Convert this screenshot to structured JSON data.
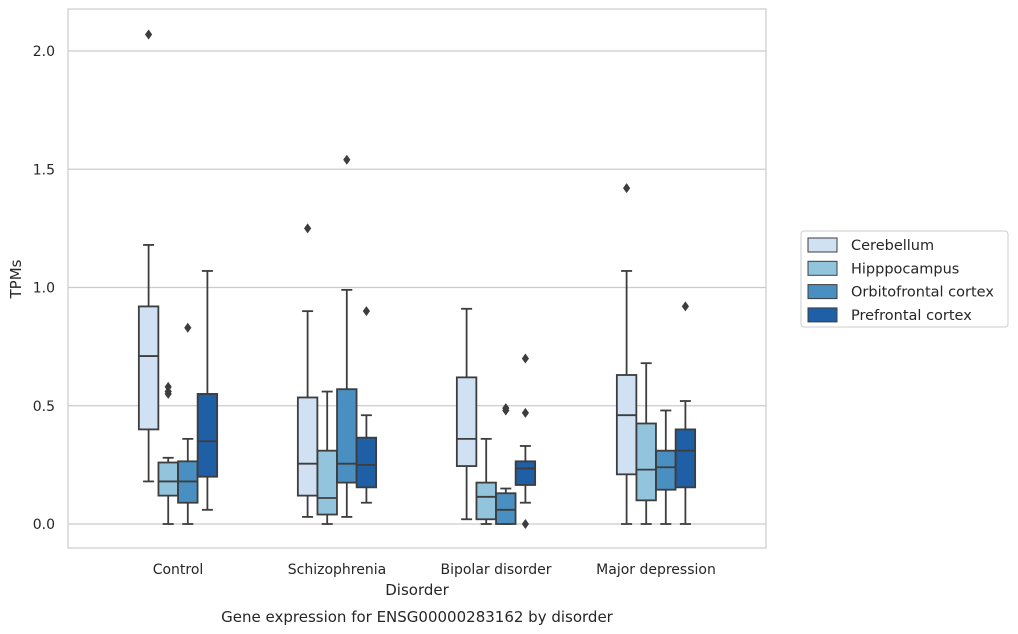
{
  "chart_data": {
    "type": "box",
    "categories": [
      "Control",
      "Schizophrenia",
      "Bipolar disorder",
      "Major depression"
    ],
    "xlabel": "Disorder",
    "ylabel": "TPMs",
    "caption": "Gene expression for ENSG00000283162 by disorder",
    "ylim": [
      -0.1,
      2.18
    ],
    "yticks": [
      0.0,
      0.5,
      1.0,
      1.5,
      2.0
    ],
    "ytick_labels": [
      "0.0",
      "0.5",
      "1.0",
      "1.5",
      "2.0"
    ],
    "grid": "horizontal",
    "legend": {
      "placement": "right",
      "entries": [
        "Cerebellum",
        "Hipppocampus",
        "Orbitofrontal cortex",
        "Prefrontal cortex"
      ]
    },
    "series": [
      {
        "name": "Cerebellum",
        "color": "#cfe1f2",
        "boxes": [
          {
            "whislo": 0.18,
            "q1": 0.4,
            "med": 0.71,
            "q3": 0.92,
            "whishi": 1.18,
            "fliers": [
              2.07
            ]
          },
          {
            "whislo": 0.03,
            "q1": 0.12,
            "med": 0.255,
            "q3": 0.535,
            "whishi": 0.9,
            "fliers": [
              1.25
            ]
          },
          {
            "whislo": 0.02,
            "q1": 0.245,
            "med": 0.36,
            "q3": 0.62,
            "whishi": 0.91,
            "fliers": []
          },
          {
            "whislo": 0.0,
            "q1": 0.21,
            "med": 0.46,
            "q3": 0.63,
            "whishi": 1.07,
            "fliers": [
              1.42
            ]
          }
        ]
      },
      {
        "name": "Hipppocampus",
        "color": "#93c4de",
        "boxes": [
          {
            "whislo": 0.0,
            "q1": 0.12,
            "med": 0.18,
            "q3": 0.26,
            "whishi": 0.28,
            "fliers": [
              0.55,
              0.56,
              0.58
            ]
          },
          {
            "whislo": 0.0,
            "q1": 0.04,
            "med": 0.11,
            "q3": 0.31,
            "whishi": 0.56,
            "fliers": []
          },
          {
            "whislo": 0.0,
            "q1": 0.02,
            "med": 0.115,
            "q3": 0.175,
            "whishi": 0.36,
            "fliers": []
          },
          {
            "whislo": 0.0,
            "q1": 0.1,
            "med": 0.23,
            "q3": 0.425,
            "whishi": 0.68,
            "fliers": []
          }
        ]
      },
      {
        "name": "Orbitofrontal cortex",
        "color": "#4a8fc1",
        "boxes": [
          {
            "whislo": 0.0,
            "q1": 0.09,
            "med": 0.18,
            "q3": 0.265,
            "whishi": 0.36,
            "fliers": [
              0.83
            ]
          },
          {
            "whislo": 0.03,
            "q1": 0.175,
            "med": 0.255,
            "q3": 0.57,
            "whishi": 0.99,
            "fliers": [
              1.54
            ]
          },
          {
            "whislo": 0.0,
            "q1": 0.0,
            "med": 0.06,
            "q3": 0.13,
            "whishi": 0.15,
            "fliers": [
              0.48,
              0.49
            ]
          },
          {
            "whislo": 0.0,
            "q1": 0.145,
            "med": 0.24,
            "q3": 0.31,
            "whishi": 0.48,
            "fliers": []
          }
        ]
      },
      {
        "name": "Prefrontal cortex",
        "color": "#1f5fa6",
        "boxes": [
          {
            "whislo": 0.06,
            "q1": 0.2,
            "med": 0.35,
            "q3": 0.55,
            "whishi": 1.07,
            "fliers": []
          },
          {
            "whislo": 0.09,
            "q1": 0.155,
            "med": 0.25,
            "q3": 0.365,
            "whishi": 0.46,
            "fliers": [
              0.9
            ]
          },
          {
            "whislo": 0.09,
            "q1": 0.165,
            "med": 0.235,
            "q3": 0.265,
            "whishi": 0.33,
            "fliers": [
              0.0,
              0.47,
              0.7
            ]
          },
          {
            "whislo": 0.0,
            "q1": 0.155,
            "med": 0.31,
            "q3": 0.4,
            "whishi": 0.52,
            "fliers": [
              0.92
            ]
          }
        ]
      }
    ]
  }
}
